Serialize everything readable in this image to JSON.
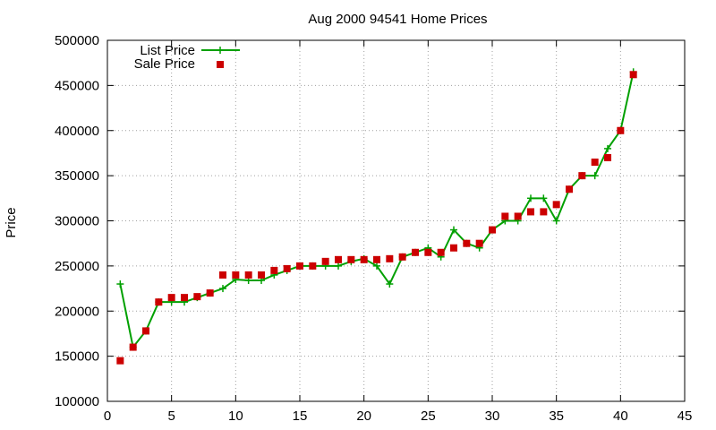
{
  "chart_data": {
    "type": "line",
    "title": "Aug 2000 94541 Home Prices",
    "xlabel": "",
    "ylabel": "Price",
    "xlim": [
      0,
      45
    ],
    "ylim": [
      100000,
      500000
    ],
    "x_ticks": [
      "0",
      "5",
      "10",
      "15",
      "20",
      "25",
      "30",
      "35",
      "40",
      "45"
    ],
    "y_ticks": [
      "100000",
      "150000",
      "200000",
      "250000",
      "300000",
      "350000",
      "400000",
      "450000",
      "500000"
    ],
    "grid": true,
    "legend_position": "top-left",
    "series": [
      {
        "name": "List Price",
        "style": "line-with-plus-markers",
        "color": "#00a000",
        "x": [
          1,
          2,
          3,
          4,
          5,
          6,
          7,
          8,
          9,
          10,
          11,
          12,
          13,
          14,
          15,
          16,
          17,
          18,
          19,
          20,
          21,
          22,
          23,
          24,
          25,
          26,
          27,
          28,
          29,
          30,
          31,
          32,
          33,
          34,
          35,
          36,
          37,
          38,
          39,
          40,
          41
        ],
        "values": [
          230000,
          160000,
          178000,
          210000,
          210000,
          210000,
          215000,
          220000,
          225000,
          235000,
          234000,
          234000,
          240000,
          245000,
          250000,
          250000,
          250000,
          250000,
          255000,
          258000,
          250000,
          230000,
          260000,
          265000,
          270000,
          260000,
          290000,
          275000,
          270000,
          290000,
          300000,
          300000,
          325000,
          325000,
          300000,
          335000,
          350000,
          350000,
          380000,
          400000,
          465000
        ]
      },
      {
        "name": "Sale Price",
        "style": "square-markers",
        "color": "#cc0000",
        "x": [
          1,
          2,
          3,
          4,
          5,
          6,
          7,
          8,
          9,
          10,
          11,
          12,
          13,
          14,
          15,
          16,
          17,
          18,
          19,
          20,
          21,
          22,
          23,
          24,
          25,
          26,
          27,
          28,
          29,
          30,
          31,
          32,
          33,
          34,
          35,
          36,
          37,
          38,
          39,
          40,
          41
        ],
        "values": [
          145000,
          160000,
          178000,
          210000,
          215000,
          215000,
          216000,
          220000,
          240000,
          240000,
          240000,
          240000,
          245000,
          247000,
          250000,
          250000,
          255000,
          257000,
          257000,
          257000,
          257000,
          258000,
          260000,
          265000,
          265000,
          265000,
          270000,
          275000,
          275000,
          290000,
          305000,
          305000,
          310000,
          310000,
          318000,
          335000,
          350000,
          365000,
          370000,
          400000,
          462000
        ]
      }
    ]
  }
}
